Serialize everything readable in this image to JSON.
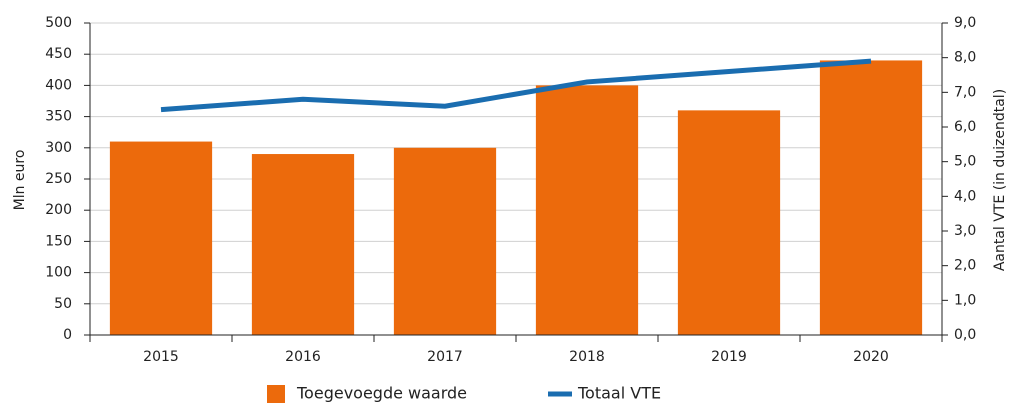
{
  "chart_data": {
    "type": "bar",
    "categories": [
      "2015",
      "2016",
      "2017",
      "2018",
      "2019",
      "2020"
    ],
    "series": [
      {
        "name": "Toegevoegde waarde",
        "type": "bar",
        "color": "#ec6a0c",
        "values": [
          310,
          290,
          300,
          400,
          360,
          440
        ]
      },
      {
        "name": "Totaal VTE",
        "type": "line",
        "axis": "y2",
        "color": "#1a6db0",
        "values": [
          6.5,
          6.8,
          6.6,
          7.3,
          7.6,
          7.9
        ]
      }
    ],
    "ylabel": "Mln euro",
    "y2label": "Aantal VTE (in duizendtal)",
    "ylim": [
      0,
      500
    ],
    "yticks": [
      0,
      50,
      100,
      150,
      200,
      250,
      300,
      350,
      400,
      450,
      500
    ],
    "y2lim": [
      0,
      9
    ],
    "y2ticks": [
      {
        "value": 0,
        "label": "0,0"
      },
      {
        "value": 1,
        "label": "1,0"
      },
      {
        "value": 2,
        "label": "2,0"
      },
      {
        "value": 3,
        "label": "3,0"
      },
      {
        "value": 4,
        "label": "4,0"
      },
      {
        "value": 5,
        "label": "5,0"
      },
      {
        "value": 6,
        "label": "6,0"
      },
      {
        "value": 7,
        "label": "7,0"
      },
      {
        "value": 8,
        "label": "8,0"
      },
      {
        "value": 9,
        "label": "9,0"
      }
    ],
    "grid": true,
    "legend": "bottom"
  }
}
